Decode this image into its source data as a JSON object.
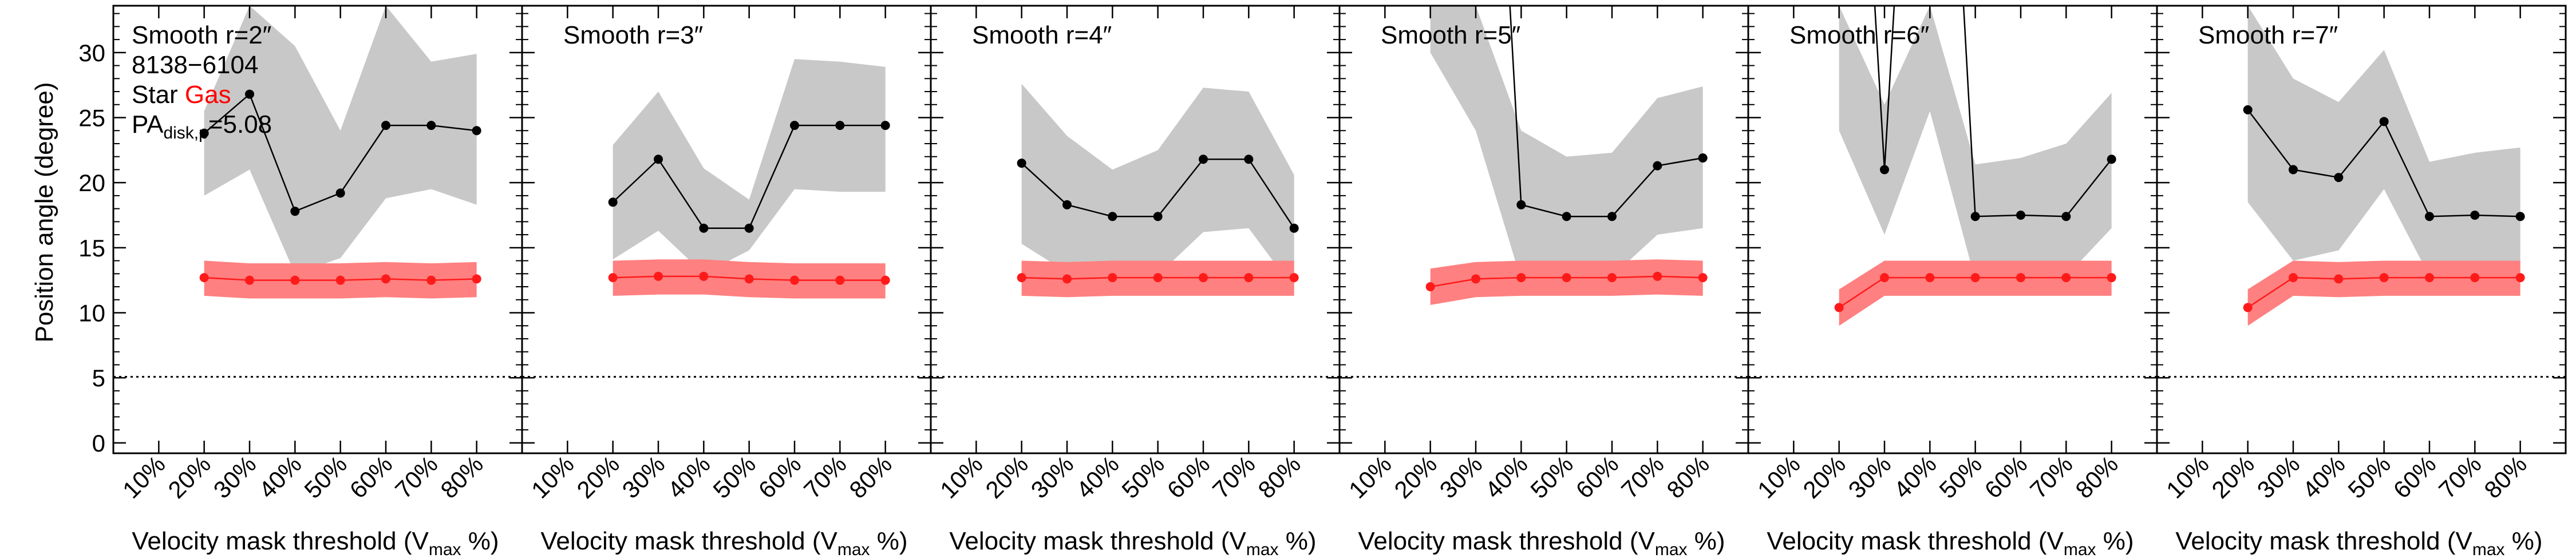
{
  "figure": {
    "ylabel": "Position angle (degree)",
    "yticks": [
      0,
      5,
      10,
      15,
      20,
      25,
      30
    ],
    "ylim": [
      -0.8,
      33.6
    ],
    "reference_line_y": 5.08,
    "info": {
      "plate_ifu": "8138−6104",
      "star_label": "Star",
      "gas_label": "Gas",
      "pa_main": "PA",
      "pa_sub": "disk,p",
      "pa_value": "=5.08"
    },
    "xlabel_main": "Velocity mask threshold (V",
    "xlabel_sub": "max",
    "xlabel_end": " %)",
    "colors": {
      "star": "#000000",
      "star_band": "#c8c8c8",
      "gas": "#ff1a1a",
      "gas_band": "#ff8080",
      "gas_text": "#ff0000"
    }
  },
  "chart_data": [
    {
      "type": "line",
      "title": "Smooth r=2″",
      "categories": [
        "10%",
        "20%",
        "30%",
        "40%",
        "50%",
        "60%",
        "70%",
        "80%"
      ],
      "x": [
        20,
        30,
        40,
        50,
        60,
        70,
        80
      ],
      "series": [
        {
          "name": "Star",
          "values": [
            23.8,
            26.8,
            17.8,
            19.2,
            24.4,
            24.4,
            24.0
          ],
          "lower": [
            19.0,
            21.0,
            13.0,
            14.2,
            18.8,
            19.5,
            18.3
          ],
          "upper": [
            25.5,
            33.6,
            30.5,
            24.0,
            33.6,
            29.3,
            29.9
          ]
        },
        {
          "name": "Gas",
          "values": [
            12.7,
            12.5,
            12.5,
            12.5,
            12.6,
            12.5,
            12.6
          ],
          "lower": [
            11.3,
            11.1,
            11.1,
            11.1,
            11.2,
            11.1,
            11.2
          ],
          "upper": [
            14.0,
            13.8,
            13.8,
            13.8,
            13.9,
            13.8,
            13.9
          ]
        }
      ]
    },
    {
      "type": "line",
      "title": "Smooth r=3″",
      "categories": [
        "10%",
        "20%",
        "30%",
        "40%",
        "50%",
        "60%",
        "70%",
        "80%"
      ],
      "x": [
        20,
        30,
        40,
        50,
        60,
        70,
        80
      ],
      "series": [
        {
          "name": "Star",
          "values": [
            18.5,
            21.8,
            16.5,
            16.5,
            24.4,
            24.4,
            24.4
          ],
          "lower": [
            14.1,
            16.3,
            13.0,
            14.8,
            19.5,
            19.3,
            19.3
          ],
          "upper": [
            22.9,
            27.0,
            21.1,
            18.7,
            29.5,
            29.3,
            28.9
          ]
        },
        {
          "name": "Gas",
          "values": [
            12.7,
            12.8,
            12.8,
            12.6,
            12.5,
            12.5,
            12.5
          ],
          "lower": [
            11.3,
            11.4,
            11.4,
            11.2,
            11.1,
            11.1,
            11.1
          ],
          "upper": [
            14.0,
            14.1,
            14.1,
            13.9,
            13.8,
            13.8,
            13.8
          ]
        }
      ]
    },
    {
      "type": "line",
      "title": "Smooth r=4″",
      "categories": [
        "10%",
        "20%",
        "30%",
        "40%",
        "50%",
        "60%",
        "70%",
        "80%"
      ],
      "x": [
        20,
        30,
        40,
        50,
        60,
        70,
        80
      ],
      "series": [
        {
          "name": "Star",
          "values": [
            21.5,
            18.3,
            17.4,
            17.4,
            21.8,
            21.8,
            16.5
          ],
          "lower": [
            15.3,
            13.1,
            13.4,
            12.9,
            16.2,
            16.5,
            11.8
          ],
          "upper": [
            27.6,
            23.6,
            21.0,
            22.5,
            27.3,
            27.0,
            20.6
          ]
        },
        {
          "name": "Gas",
          "values": [
            12.7,
            12.6,
            12.7,
            12.7,
            12.7,
            12.7,
            12.7
          ],
          "lower": [
            11.3,
            11.2,
            11.3,
            11.3,
            11.3,
            11.3,
            11.3
          ],
          "upper": [
            14.0,
            13.9,
            14.0,
            14.0,
            14.0,
            14.0,
            14.0
          ]
        }
      ]
    },
    {
      "type": "line",
      "title": "Smooth r=5″",
      "categories": [
        "10%",
        "20%",
        "30%",
        "40%",
        "50%",
        "60%",
        "70%",
        "80%"
      ],
      "x": [
        20,
        30,
        40,
        50,
        60,
        70,
        80
      ],
      "series": [
        {
          "name": "Star",
          "values": [
            80.0,
            80.0,
            18.3,
            17.4,
            17.4,
            21.3,
            21.9
          ],
          "lower": [
            30.0,
            24.0,
            12.5,
            12.5,
            12.8,
            16.0,
            16.5
          ],
          "upper": [
            33.6,
            33.6,
            24.0,
            22.0,
            22.3,
            26.5,
            27.4
          ]
        },
        {
          "name": "Gas",
          "values": [
            12.0,
            12.6,
            12.7,
            12.7,
            12.7,
            12.8,
            12.7
          ],
          "lower": [
            10.6,
            11.2,
            11.3,
            11.3,
            11.3,
            11.4,
            11.3
          ],
          "upper": [
            13.4,
            13.9,
            14.0,
            14.0,
            14.0,
            14.1,
            14.0
          ]
        }
      ]
    },
    {
      "type": "line",
      "title": "Smooth r=6″",
      "categories": [
        "10%",
        "20%",
        "30%",
        "40%",
        "50%",
        "60%",
        "70%",
        "80%"
      ],
      "x": [
        20,
        30,
        40,
        50,
        60,
        70,
        80
      ],
      "series": [
        {
          "name": "Star",
          "values": [
            80.0,
            21.0,
            80.0,
            17.4,
            17.5,
            17.4,
            21.8
          ],
          "lower": [
            24.0,
            16.0,
            25.5,
            12.5,
            12.8,
            12.8,
            16.5
          ],
          "upper": [
            33.6,
            26.0,
            33.6,
            21.4,
            21.9,
            23.0,
            26.9
          ]
        },
        {
          "name": "Gas",
          "values": [
            10.4,
            12.7,
            12.7,
            12.7,
            12.7,
            12.7,
            12.7
          ],
          "lower": [
            9.0,
            11.3,
            11.3,
            11.3,
            11.3,
            11.3,
            11.3
          ],
          "upper": [
            11.8,
            14.0,
            14.0,
            14.0,
            14.0,
            14.0,
            14.0
          ]
        }
      ]
    },
    {
      "type": "line",
      "title": "Smooth r=7″",
      "categories": [
        "10%",
        "20%",
        "30%",
        "40%",
        "50%",
        "60%",
        "70%",
        "80%"
      ],
      "x": [
        20,
        30,
        40,
        50,
        60,
        70,
        80
      ],
      "series": [
        {
          "name": "Star",
          "values": [
            25.6,
            21.0,
            20.4,
            24.7,
            17.4,
            17.5,
            17.4
          ],
          "lower": [
            18.5,
            14.0,
            14.8,
            19.5,
            12.8,
            12.4,
            12.4
          ],
          "upper": [
            33.6,
            28.0,
            26.2,
            30.2,
            21.6,
            22.3,
            22.7
          ]
        },
        {
          "name": "Gas",
          "values": [
            10.4,
            12.7,
            12.6,
            12.7,
            12.7,
            12.7,
            12.7
          ],
          "lower": [
            9.0,
            11.3,
            11.2,
            11.3,
            11.3,
            11.3,
            11.3
          ],
          "upper": [
            11.8,
            14.0,
            13.9,
            14.0,
            14.0,
            14.0,
            14.0
          ]
        }
      ]
    }
  ]
}
